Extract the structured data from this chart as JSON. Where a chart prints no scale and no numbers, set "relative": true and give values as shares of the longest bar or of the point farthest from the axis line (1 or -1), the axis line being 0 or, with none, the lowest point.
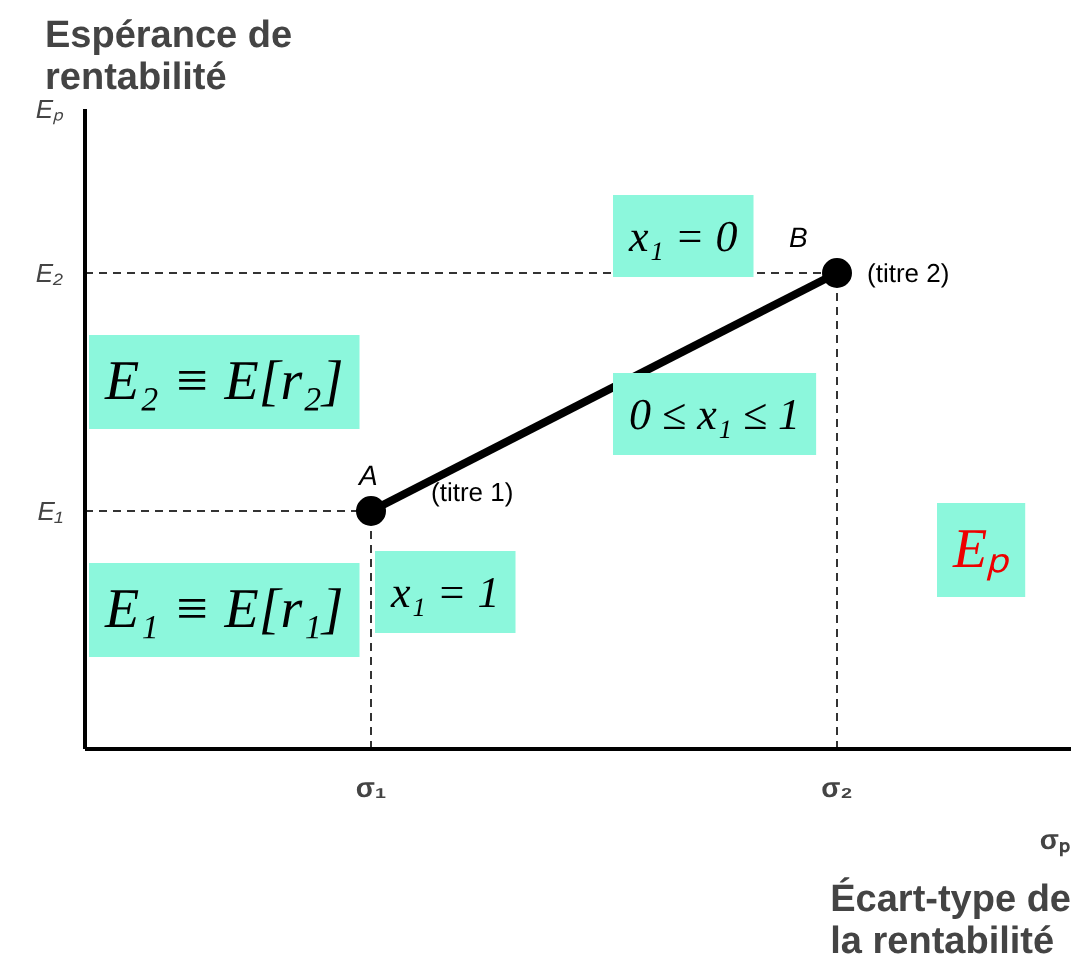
{
  "chart_data": {
    "type": "line",
    "title": "Espérance de rentabilité",
    "xlabel": "Écart-type de la rentabilité",
    "categories": [
      "σ₁",
      "σ₂"
    ],
    "series": [
      {
        "color": "#000000",
        "values": [
          0.5,
          1
        ]
      }
    ],
    "relative": true,
    "marker": "circle",
    "line_style": "solid",
    "annotations": [
      {
        "text": "A",
        "x": "σ₁",
        "y": 0.5
      },
      {
        "text": "(titre 1)",
        "x": "σ₁",
        "y": 0.5
      },
      {
        "text": "B",
        "x": "σ₂",
        "y": 1
      },
      {
        "text": "(titre 2)",
        "x": "σ₂",
        "y": 1
      },
      {
        "text": "x₁ = 1",
        "x": "σ₁",
        "y": 0.5
      },
      {
        "text": "x₁ = 0",
        "x": "σ₂",
        "y": 1
      },
      "0 ≤ x₁ ≤ 1",
      "E₂ ≡ E[r₂]",
      "E₁ ≡ E[r₁]",
      "Eₚ",
      "E₁",
      "E₂",
      "Eₚ",
      "σₚ"
    ]
  }
}
